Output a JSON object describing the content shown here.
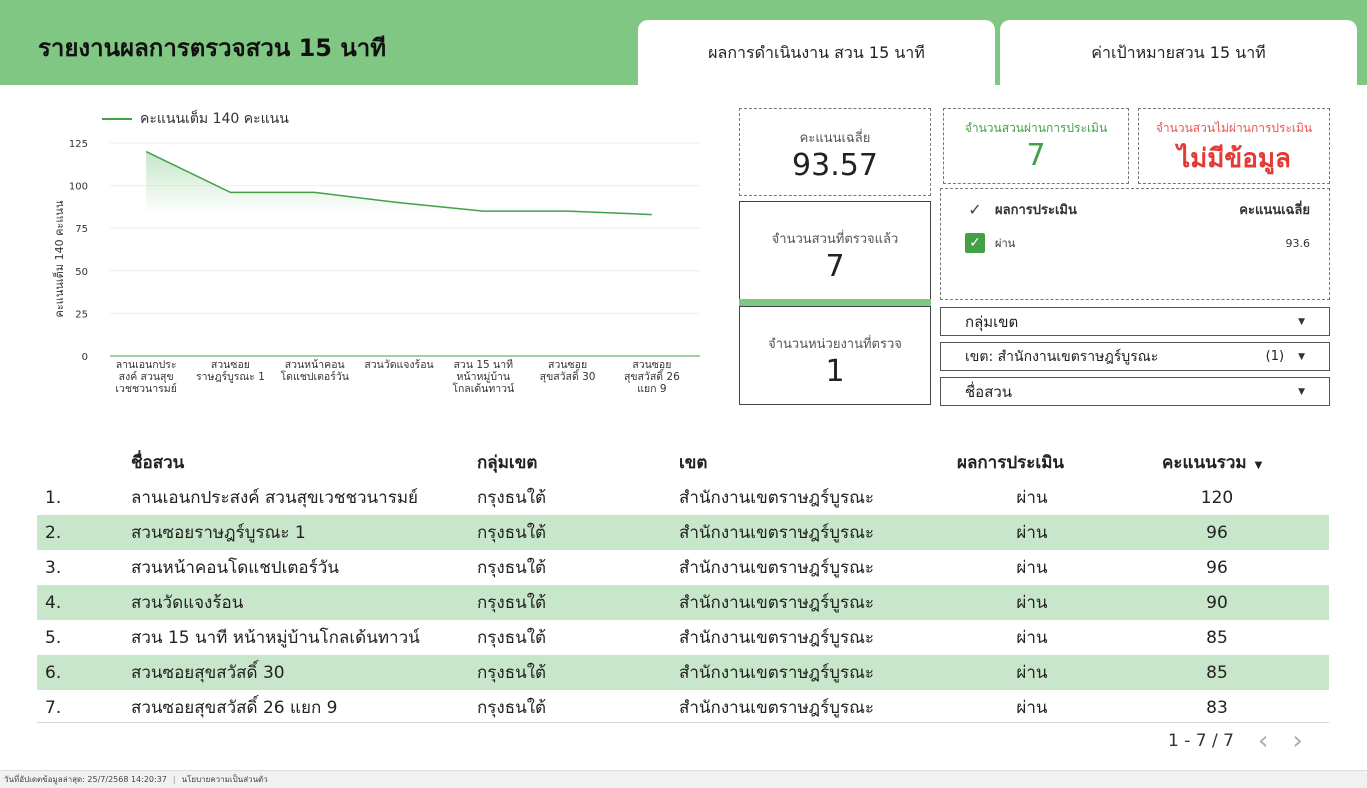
{
  "header": {
    "title": "รายงานผลการตรวจสวน 15 นาที",
    "tabs": [
      {
        "label": "ผลการดำเนินงาน สวน 15 นาที"
      },
      {
        "label": "ค่าเป้าหมายสวน 15 นาที"
      }
    ]
  },
  "chart_data": {
    "type": "area",
    "series": [
      {
        "name": "คะแนนเต็ม 140 คะแนน",
        "values": [
          120,
          96,
          96,
          90,
          85,
          85,
          83
        ]
      }
    ],
    "categories": [
      "ลานเอนกประสงค์ สวนสุขเวชชวนารมย์",
      "สวนซอยราษฎร์บูรณะ 1",
      "สวนหน้าคอนโดแชปเตอร์วัน",
      "สวนวัดแจงร้อน",
      "สวน 15 นาที หน้าหมู่บ้านโกลเด้นทาวน์",
      "สวนซอยสุขสวัสดิ์ 30",
      "สวนซอยสุขสวัสดิ์ 26 แยก 9"
    ],
    "category_lines": [
      [
        "ลานเอนกประ",
        "สงค์ สวนสุข",
        "เวชชวนารมย์"
      ],
      [
        "สวนซอย",
        "ราษฎร์บูรณะ 1"
      ],
      [
        "สวนหน้าคอน",
        "โดแชปเตอร์วัน"
      ],
      [
        "สวนวัดแจงร้อน"
      ],
      [
        "สวน 15 นาที",
        "หน้าหมู่บ้าน",
        "โกลเด้นทาวน์"
      ],
      [
        "สวนซอย",
        "สุขสวัสดิ์ 30"
      ],
      [
        "สวนซอย",
        "สุขสวัสดิ์ 26",
        "แยก 9"
      ]
    ],
    "yticks": [
      0,
      25,
      50,
      75,
      100,
      125
    ],
    "ylim": [
      0,
      125
    ],
    "ylabel": "คะแนนเต็ม 140 คะแนน",
    "legend_label": "คะแนนเต็ม 140 คะแนน",
    "line_color": "#43a047",
    "grid": true
  },
  "scorecards": {
    "avg": {
      "label": "คะแนนเฉลี่ย",
      "value": "93.57"
    },
    "passed": {
      "label": "จำนวนสวนผ่านการประเมิน",
      "value": "7"
    },
    "failed": {
      "label": "จำนวนสวนไม่ผ่านการประเมิน",
      "value": "ไม่มีข้อมูล"
    },
    "checked": {
      "label": "จำนวนสวนที่ตรวจแล้ว",
      "value": "7"
    },
    "units": {
      "label": "จำนวนหน่วยงานที่ตรวจ",
      "value": "1"
    }
  },
  "eval_table": {
    "head_result": "ผลการประเมิน",
    "head_avg": "คะแนนเฉลี่ย",
    "rows": [
      {
        "result": "ผ่าน",
        "avg": "93.6"
      }
    ]
  },
  "filters": {
    "group": {
      "label": "กลุ่มเขต"
    },
    "district": {
      "label": "เขต: สำนักงานเขตราษฎร์บูรณะ",
      "count": "(1)"
    },
    "park": {
      "label": "ชื่อสวน"
    }
  },
  "table": {
    "headers": [
      "ชื่อสวน",
      "กลุ่มเขต",
      "เขต",
      "ผลการประเมิน",
      "คะแนนรวม"
    ],
    "rows": [
      {
        "no": "1.",
        "name": "ลานเอนกประสงค์ สวนสุขเวชชวนารมย์",
        "group": "กรุงธนใต้",
        "district": "สำนักงานเขตราษฎร์บูรณะ",
        "result": "ผ่าน",
        "score": "120"
      },
      {
        "no": "2.",
        "name": "สวนซอยราษฎร์บูรณะ 1",
        "group": "กรุงธนใต้",
        "district": "สำนักงานเขตราษฎร์บูรณะ",
        "result": "ผ่าน",
        "score": "96"
      },
      {
        "no": "3.",
        "name": "สวนหน้าคอนโดแชปเตอร์วัน",
        "group": "กรุงธนใต้",
        "district": "สำนักงานเขตราษฎร์บูรณะ",
        "result": "ผ่าน",
        "score": "96"
      },
      {
        "no": "4.",
        "name": "สวนวัดแจงร้อน",
        "group": "กรุงธนใต้",
        "district": "สำนักงานเขตราษฎร์บูรณะ",
        "result": "ผ่าน",
        "score": "90"
      },
      {
        "no": "5.",
        "name": "สวน 15 นาที หน้าหมู่บ้านโกลเด้นทาวน์",
        "group": "กรุงธนใต้",
        "district": "สำนักงานเขตราษฎร์บูรณะ",
        "result": "ผ่าน",
        "score": "85"
      },
      {
        "no": "6.",
        "name": "สวนซอยสุขสวัสดิ์ 30",
        "group": "กรุงธนใต้",
        "district": "สำนักงานเขตราษฎร์บูรณะ",
        "result": "ผ่าน",
        "score": "85"
      },
      {
        "no": "7.",
        "name": "สวนซอยสุขสวัสดิ์ 26 แยก 9",
        "group": "กรุงธนใต้",
        "district": "สำนักงานเขตราษฎร์บูรณะ",
        "result": "ผ่าน",
        "score": "83"
      }
    ],
    "pagination": "1 - 7 / 7"
  },
  "footer": {
    "updated": "วันที่อัปเดตข้อมูลล่าสุด: 25/7/2568 14:20:37",
    "privacy": "นโยบายความเป็นส่วนตัว"
  }
}
